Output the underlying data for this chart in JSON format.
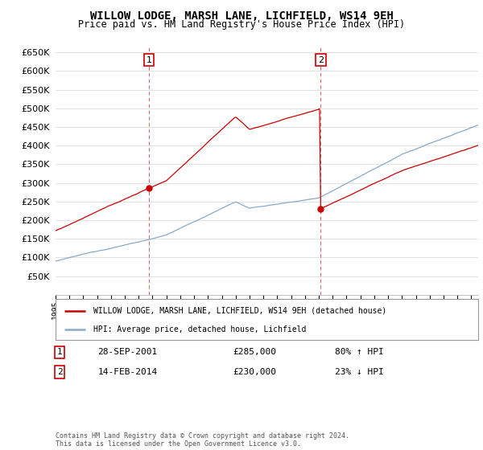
{
  "title": "WILLOW LODGE, MARSH LANE, LICHFIELD, WS14 9EH",
  "subtitle": "Price paid vs. HM Land Registry's House Price Index (HPI)",
  "legend_label_red": "WILLOW LODGE, MARSH LANE, LICHFIELD, WS14 9EH (detached house)",
  "legend_label_blue": "HPI: Average price, detached house, Lichfield",
  "transaction1_label": "1",
  "transaction1_date": "28-SEP-2001",
  "transaction1_price": "£285,000",
  "transaction1_hpi": "80% ↑ HPI",
  "transaction2_label": "2",
  "transaction2_date": "14-FEB-2014",
  "transaction2_price": "£230,000",
  "transaction2_hpi": "23% ↓ HPI",
  "footer": "Contains HM Land Registry data © Crown copyright and database right 2024.\nThis data is licensed under the Open Government Licence v3.0.",
  "ylim": [
    0,
    670000
  ],
  "yticks": [
    0,
    50000,
    100000,
    150000,
    200000,
    250000,
    300000,
    350000,
    400000,
    450000,
    500000,
    550000,
    600000,
    650000
  ],
  "red_color": "#cc0000",
  "blue_color": "#88aacc",
  "background_color": "#ffffff",
  "grid_color": "#dddddd",
  "t1_year": 2001.75,
  "t2_year": 2014.125,
  "price1": 285000,
  "price2": 230000,
  "xmin": 1995,
  "xmax": 2025.5
}
